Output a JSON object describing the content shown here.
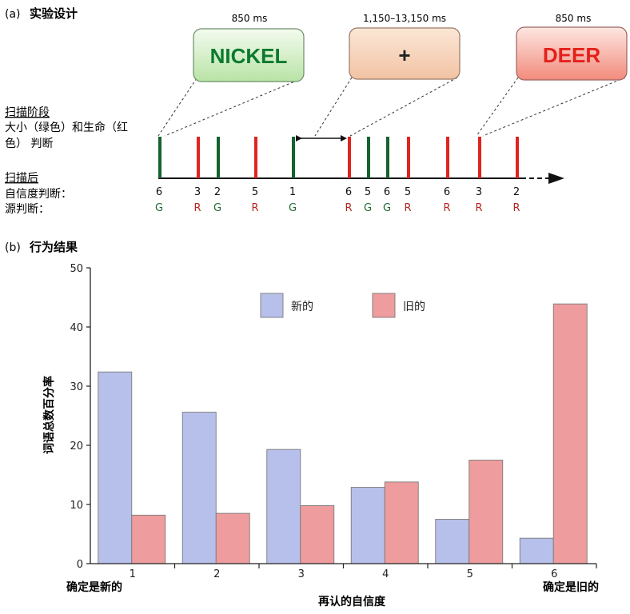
{
  "panel_a": {
    "label": "(a)",
    "title": "实验设计",
    "stimuli": [
      {
        "duration": "850 ms",
        "text": "NICKEL",
        "fill_light": "#f4fbef",
        "fill_dark": "#b9e3a6",
        "text_color": "#0b7a2f"
      },
      {
        "duration": "1,150–13,150 ms",
        "text": "+",
        "fill_light": "#fbe7d6",
        "fill_dark": "#f2c3a4",
        "text_color": "#222222"
      },
      {
        "duration": "850 ms",
        "text": "DEER",
        "fill_light": "#fde7e1",
        "fill_dark": "#f28b7c",
        "text_color": "#e4201b"
      }
    ],
    "scan_phase": {
      "title": "扫描阶段",
      "line1": "大小（绿色）和生命（红",
      "line2": "色） 判断"
    },
    "post_scan": {
      "title": "扫描后",
      "confidence_label": "自信度判断：",
      "source_label": "源判断："
    },
    "colors": {
      "green": "#16622f",
      "red": "#e0241f",
      "letter_green": "#1f6b33",
      "letter_red": "#b32821"
    },
    "trials": [
      {
        "color": "green",
        "confidence": "6",
        "source": "G"
      },
      {
        "color": "red",
        "confidence": "3",
        "source": "R"
      },
      {
        "color": "green",
        "confidence": "2",
        "source": "G"
      },
      {
        "color": "red",
        "confidence": "5",
        "source": "R"
      },
      {
        "color": "green",
        "confidence": "1",
        "source": "G"
      },
      {
        "color": "red",
        "confidence": "6",
        "source": "R"
      },
      {
        "color": "green",
        "confidence": "5",
        "source": "G"
      },
      {
        "color": "green",
        "confidence": "6",
        "source": "G"
      },
      {
        "color": "red",
        "confidence": "5",
        "source": "R"
      },
      {
        "color": "red",
        "confidence": "6",
        "source": "R"
      },
      {
        "color": "red",
        "confidence": "3",
        "source": "R"
      },
      {
        "color": "red",
        "confidence": "2",
        "source": "R"
      }
    ]
  },
  "panel_b": {
    "label": "(b)",
    "title": "行为结果"
  },
  "chart_data": {
    "type": "bar",
    "categories": [
      "1",
      "2",
      "3",
      "4",
      "5",
      "6"
    ],
    "series": [
      {
        "name": "新的",
        "values": [
          32.4,
          25.6,
          19.3,
          12.9,
          7.5,
          4.3
        ],
        "color": "#b7c0ea"
      },
      {
        "name": "旧的",
        "values": [
          8.2,
          8.5,
          9.8,
          13.8,
          17.5,
          43.9
        ],
        "color": "#ee9c9e"
      }
    ],
    "yticks": [
      "0",
      "10",
      "20",
      "30",
      "40",
      "50"
    ],
    "ylim": [
      0,
      50
    ],
    "ylabel": "词语总数百分率",
    "xlabel": "再认的自信度",
    "x_left_annotation": "确定是新的",
    "x_right_annotation": "确定是旧的",
    "legend_position": "top-center",
    "grid": false
  }
}
